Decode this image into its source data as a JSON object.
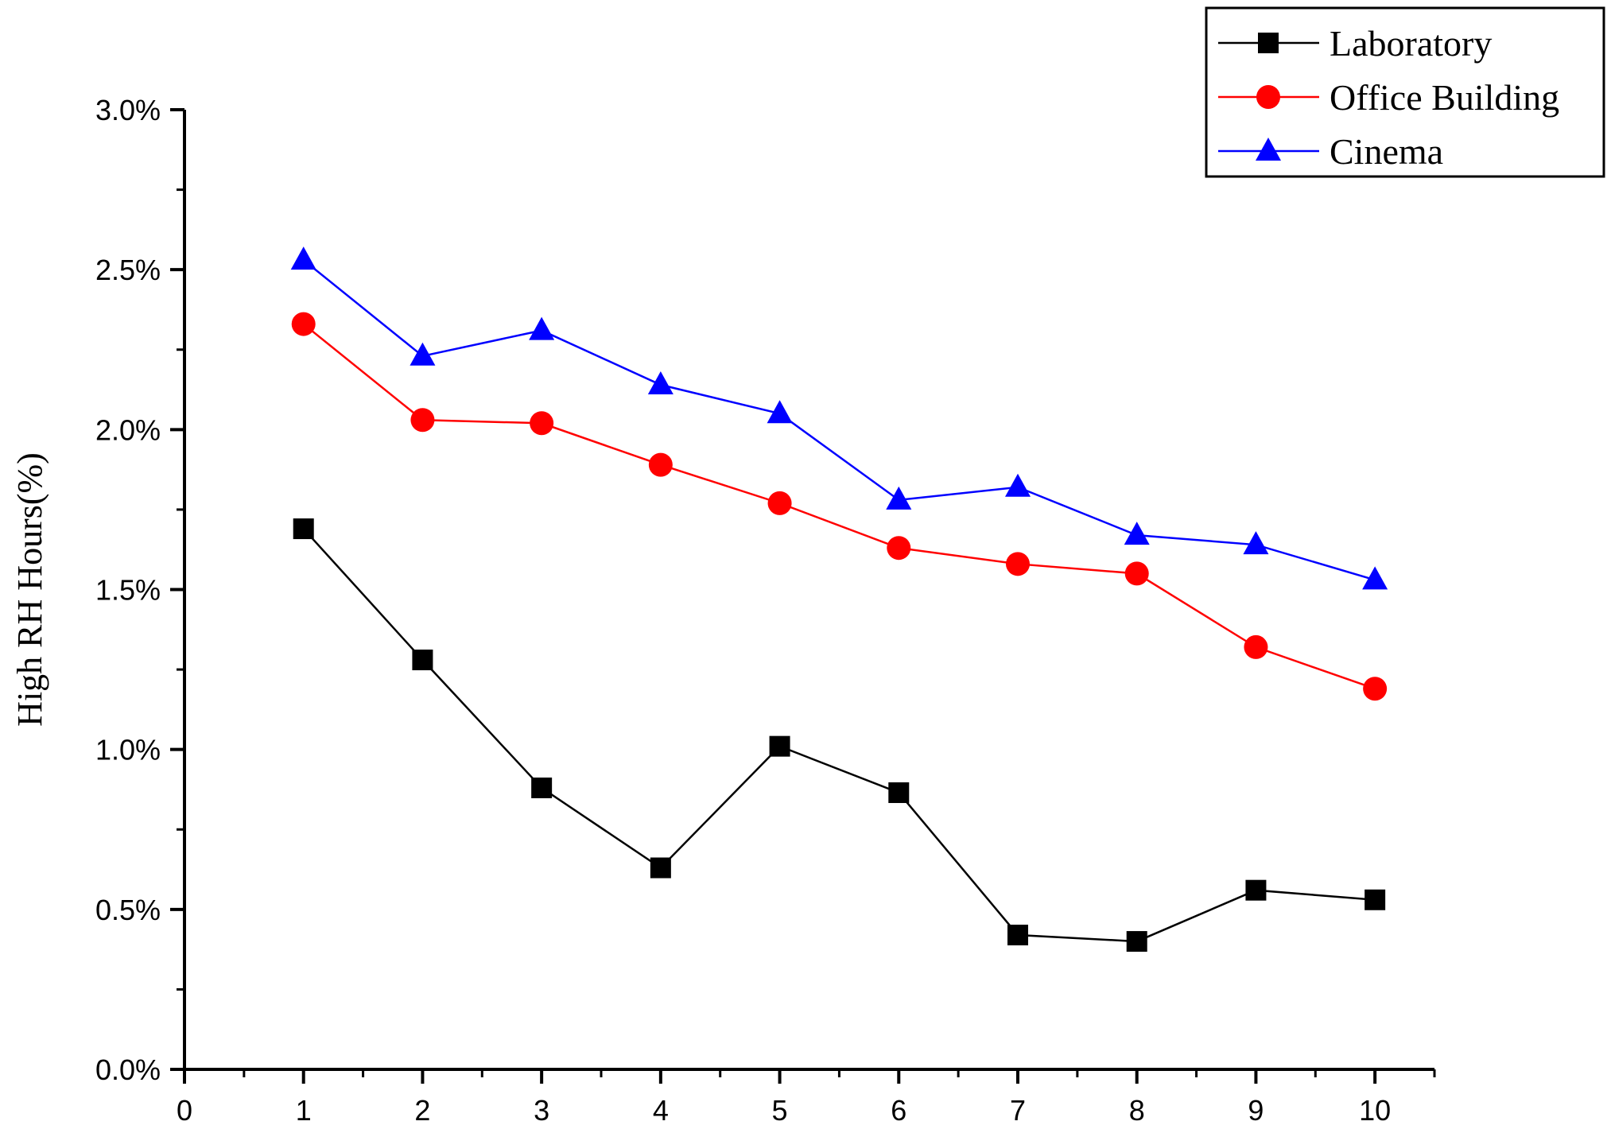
{
  "chart_data": {
    "type": "line",
    "title": "",
    "xlabel": "",
    "ylabel": "High RH Hours(%)",
    "xlim": [
      0,
      10.5
    ],
    "ylim": [
      0,
      3.0
    ],
    "x_ticks": [
      "0",
      "1",
      "2",
      "3",
      "4",
      "5",
      "6",
      "7",
      "8",
      "9",
      "10"
    ],
    "y_ticks": [
      "0.0%",
      "0.5%",
      "1.0%",
      "1.5%",
      "2.0%",
      "2.5%",
      "3.0%"
    ],
    "legend_position": "top-right",
    "grid": false,
    "x": [
      1,
      2,
      3,
      4,
      5,
      6,
      7,
      8,
      9,
      10
    ],
    "series": [
      {
        "name": "Laboratory",
        "color": "#000000",
        "marker": "square",
        "values": [
          1.69,
          1.28,
          0.88,
          0.63,
          1.01,
          0.865,
          0.42,
          0.4,
          0.56,
          0.53
        ]
      },
      {
        "name": "Office Building",
        "color": "#ff0000",
        "marker": "circle",
        "values": [
          2.33,
          2.03,
          2.02,
          1.89,
          1.77,
          1.63,
          1.58,
          1.55,
          1.32,
          1.19
        ]
      },
      {
        "name": "Cinema",
        "color": "#0000ff",
        "marker": "triangle",
        "values": [
          2.53,
          2.23,
          2.31,
          2.14,
          2.05,
          1.78,
          1.82,
          1.67,
          1.64,
          1.53
        ]
      }
    ]
  }
}
